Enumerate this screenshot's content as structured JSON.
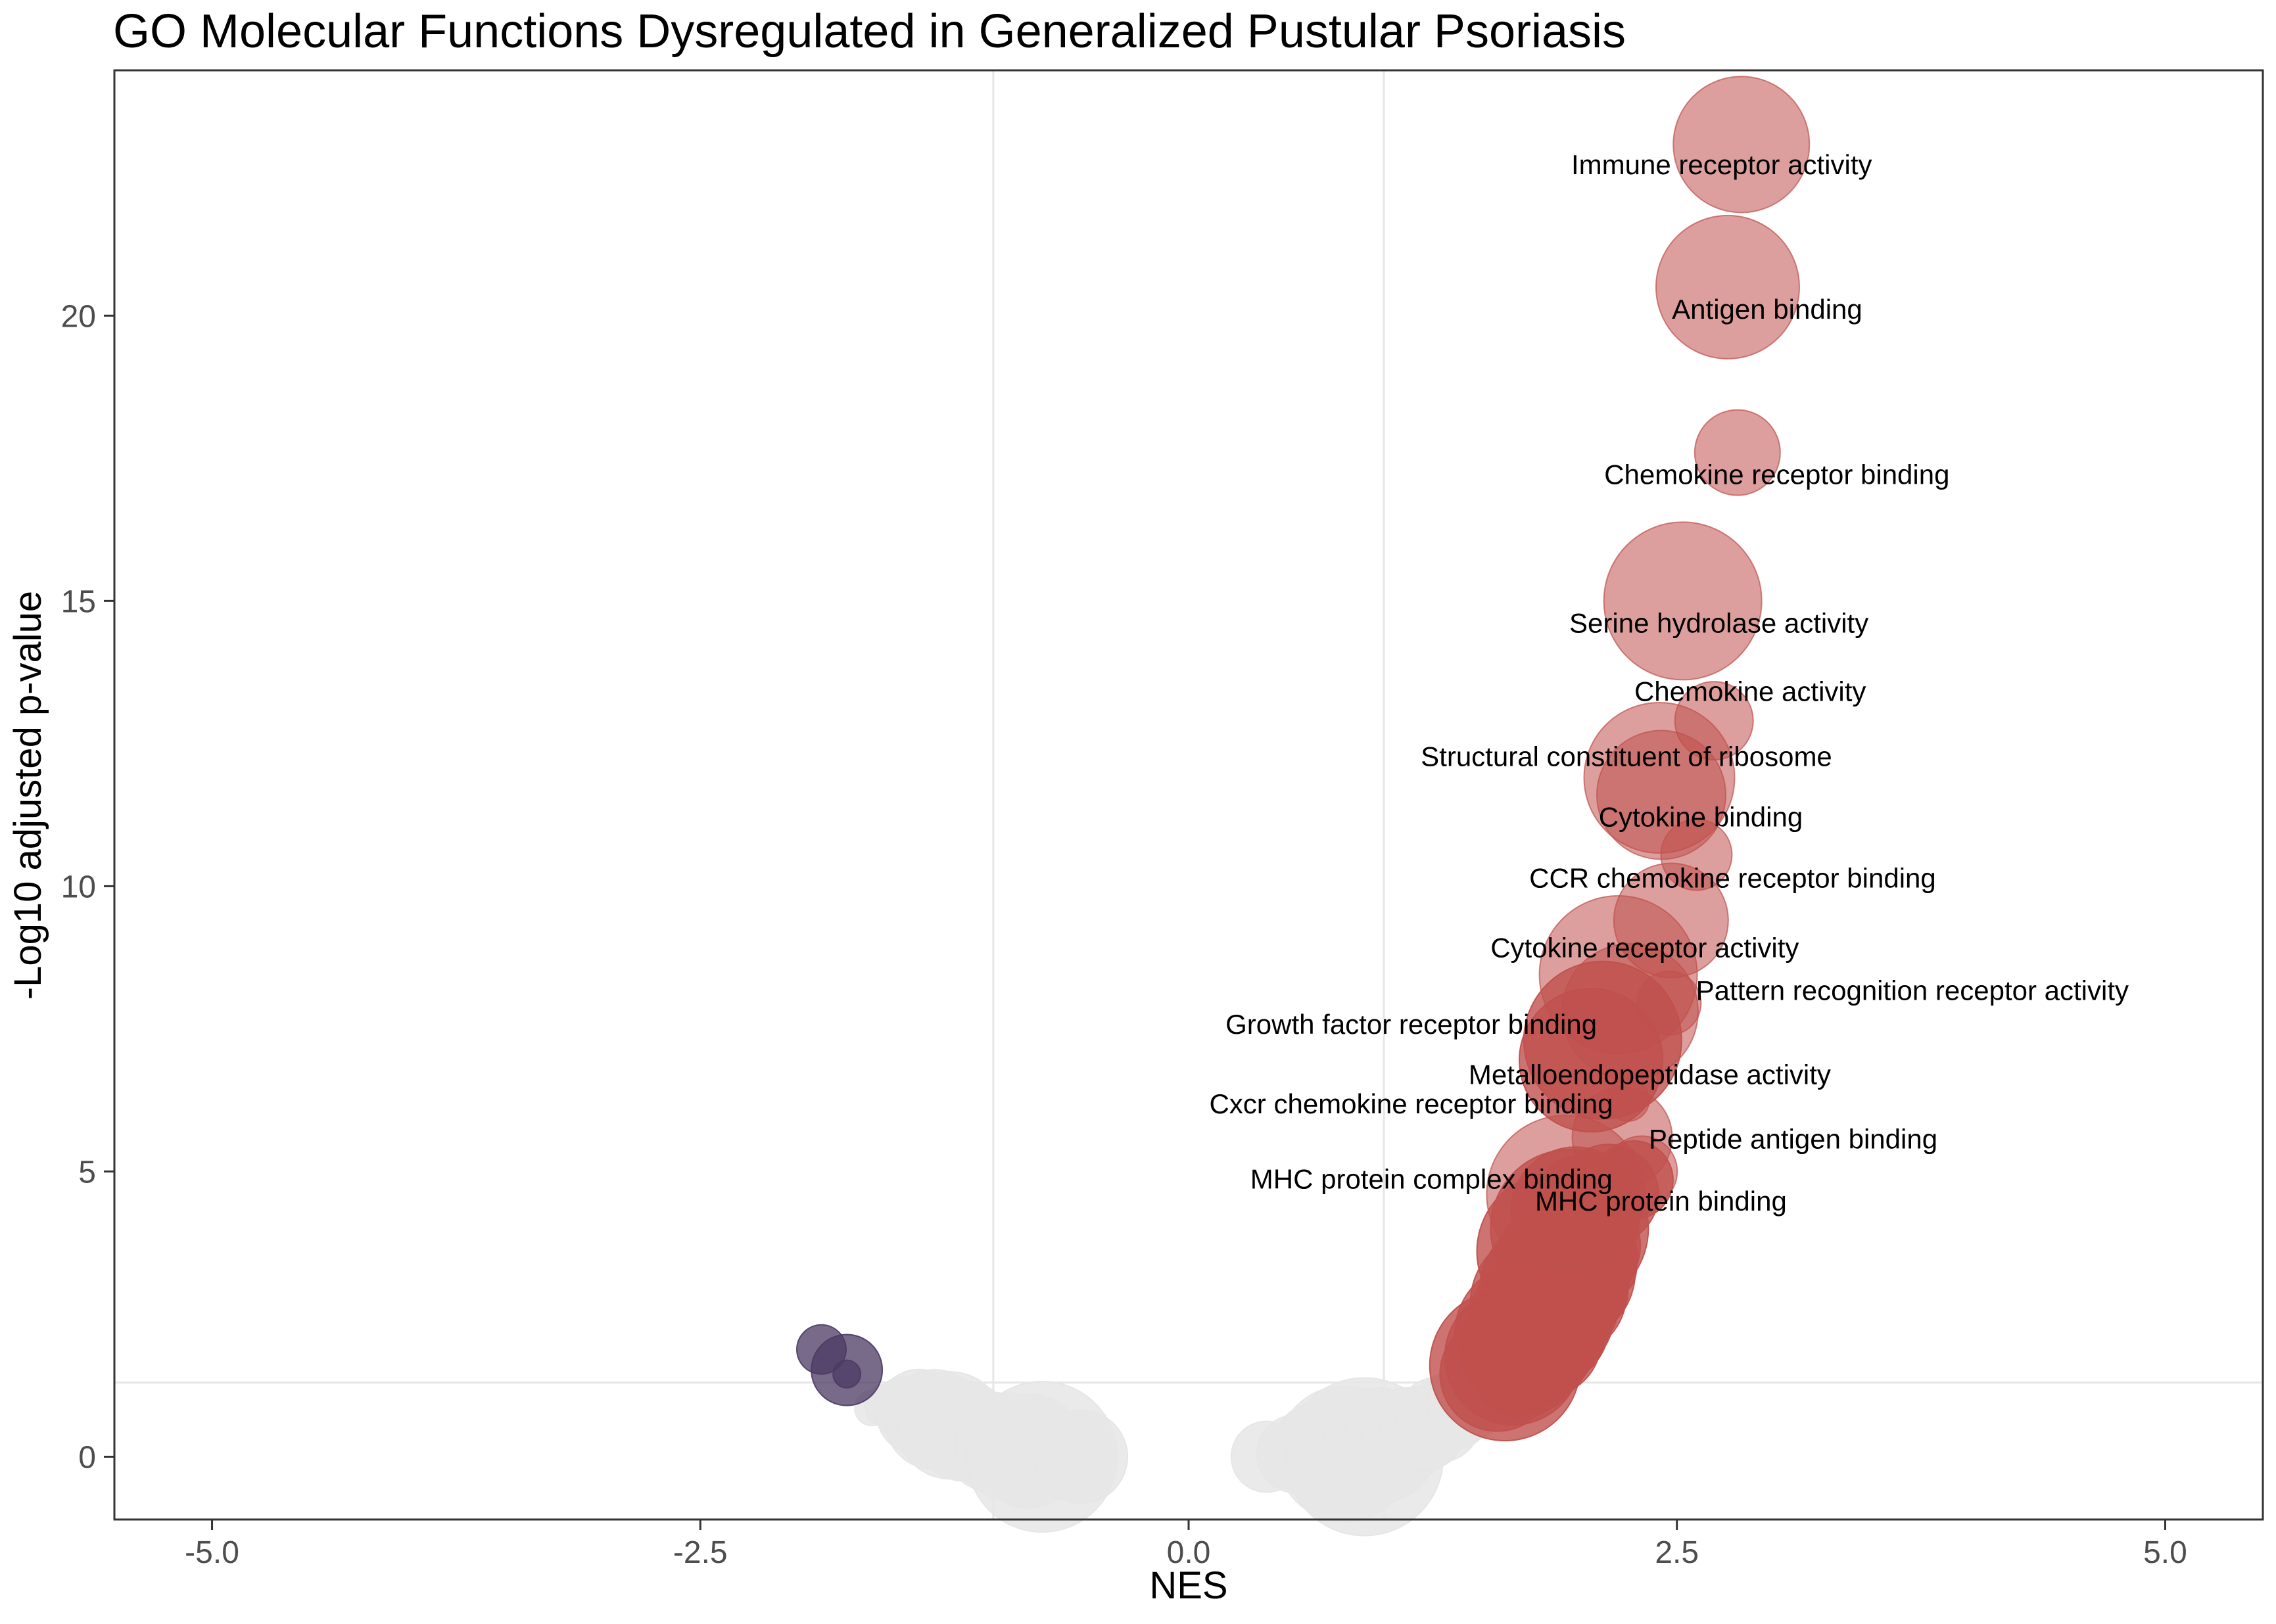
{
  "chart_data": {
    "type": "scatter",
    "title": "GO Molecular Functions Dysregulated in Generalized Pustular Psoriasis",
    "xlabel": "NES",
    "ylabel": "-Log10 adjusted p-value",
    "xlim": [
      -5.5,
      5.5
    ],
    "ylim": [
      -1.1,
      24.3
    ],
    "x_ticks": [
      -5,
      -2.5,
      0,
      2.5,
      5
    ],
    "x_tick_labels": [
      "-5.0",
      "-2.5",
      "0.0",
      "2.5",
      "5.0"
    ],
    "y_ticks": [
      0,
      5,
      10,
      15,
      20
    ],
    "y_tick_labels": [
      "0",
      "5",
      "10",
      "15",
      "20"
    ],
    "reference_lines": {
      "vertical": [
        -1,
        1
      ],
      "horizontal": [
        1.3
      ]
    },
    "grid": false,
    "legend": "none",
    "colors": {
      "up": "#c0504d",
      "down": "#4b3a63",
      "ns": "#e6e6e6",
      "panel_border": "#333333",
      "reference_line": "#e6e6e6"
    },
    "labeled_points": [
      {
        "label": "Immune receptor activity",
        "x": 2.83,
        "y": 23.0,
        "size": 0.85
      },
      {
        "label": "Antigen binding",
        "x": 2.76,
        "y": 20.5,
        "size": 0.9
      },
      {
        "label": "Chemokine receptor binding",
        "x": 2.81,
        "y": 17.6,
        "size": 0.5
      },
      {
        "label": "Serine hydrolase activity",
        "x": 2.53,
        "y": 15.0,
        "size": 1.0
      },
      {
        "label": "Chemokine activity",
        "x": 2.69,
        "y": 12.9,
        "size": 0.45
      },
      {
        "label": "Structural constituent of ribosome",
        "x": 2.41,
        "y": 11.9,
        "size": 0.95
      },
      {
        "label": "Cytokine binding",
        "x": 2.42,
        "y": 11.6,
        "size": 0.8
      },
      {
        "label": "CCR chemokine receptor binding",
        "x": 2.6,
        "y": 10.55,
        "size": 0.4
      },
      {
        "label": "Cytokine receptor activity",
        "x": 2.47,
        "y": 9.4,
        "size": 0.7
      },
      {
        "label": "Pattern recognition receptor activity",
        "x": 2.46,
        "y": 7.95,
        "size": 0.35
      },
      {
        "label": "Growth factor receptor binding",
        "x": 2.2,
        "y": 8.45,
        "size": 1.0
      },
      {
        "label": "Metalloendopeptidase activity",
        "x": 2.26,
        "y": 7.8,
        "size": 0.85
      },
      {
        "label": "Cxcr chemokine receptor binding",
        "x": 2.25,
        "y": 6.25,
        "size": 0.2
      },
      {
        "label": "Peptide antigen binding",
        "x": 2.22,
        "y": 5.6,
        "size": 0.6
      },
      {
        "label": "MHC protein complex binding",
        "x": 2.32,
        "y": 5.0,
        "size": 0.4
      },
      {
        "label": "MHC protein binding",
        "x": 1.93,
        "y": 4.6,
        "size": 1.0
      }
    ],
    "other_points": {
      "up": [
        {
          "x": 2.12,
          "y": 7.3,
          "size": 1.0
        },
        {
          "x": 2.06,
          "y": 6.95,
          "size": 0.9
        },
        {
          "x": 1.98,
          "y": 4.3,
          "size": 0.8
        },
        {
          "x": 2.28,
          "y": 4.85,
          "size": 0.45
        },
        {
          "x": 2.15,
          "y": 4.6,
          "size": 0.6
        },
        {
          "x": 1.95,
          "y": 4.0,
          "size": 1.0
        },
        {
          "x": 2.05,
          "y": 4.1,
          "size": 0.6
        },
        {
          "x": 1.88,
          "y": 3.6,
          "size": 1.0
        },
        {
          "x": 2.02,
          "y": 3.7,
          "size": 0.7
        },
        {
          "x": 2.1,
          "y": 3.5,
          "size": 0.45
        },
        {
          "x": 1.96,
          "y": 3.4,
          "size": 0.55
        },
        {
          "x": 1.92,
          "y": 3.25,
          "size": 0.9
        },
        {
          "x": 2.0,
          "y": 3.1,
          "size": 0.6
        },
        {
          "x": 2.13,
          "y": 3.3,
          "size": 0.35
        },
        {
          "x": 1.84,
          "y": 2.95,
          "size": 0.85
        },
        {
          "x": 1.93,
          "y": 2.85,
          "size": 0.75
        },
        {
          "x": 2.05,
          "y": 2.9,
          "size": 0.45
        },
        {
          "x": 1.81,
          "y": 2.7,
          "size": 0.9
        },
        {
          "x": 1.89,
          "y": 2.55,
          "size": 0.65
        },
        {
          "x": 1.98,
          "y": 2.6,
          "size": 0.5
        },
        {
          "x": 2.08,
          "y": 2.75,
          "size": 0.3
        },
        {
          "x": 1.77,
          "y": 2.4,
          "size": 0.8
        },
        {
          "x": 1.86,
          "y": 2.3,
          "size": 0.7
        },
        {
          "x": 1.95,
          "y": 2.35,
          "size": 0.5
        },
        {
          "x": 1.73,
          "y": 2.15,
          "size": 0.9
        },
        {
          "x": 1.82,
          "y": 2.05,
          "size": 0.7
        },
        {
          "x": 1.91,
          "y": 2.1,
          "size": 0.5
        },
        {
          "x": 1.7,
          "y": 1.95,
          "size": 0.75
        },
        {
          "x": 1.79,
          "y": 1.85,
          "size": 0.6
        },
        {
          "x": 1.88,
          "y": 1.9,
          "size": 0.45
        },
        {
          "x": 1.66,
          "y": 1.75,
          "size": 0.85
        },
        {
          "x": 1.75,
          "y": 1.65,
          "size": 0.6
        },
        {
          "x": 1.84,
          "y": 1.7,
          "size": 0.45
        },
        {
          "x": 1.62,
          "y": 1.6,
          "size": 0.95
        },
        {
          "x": 1.71,
          "y": 1.5,
          "size": 0.55
        },
        {
          "x": 1.8,
          "y": 1.55,
          "size": 0.4
        },
        {
          "x": 1.58,
          "y": 1.45,
          "size": 0.7
        },
        {
          "x": 1.67,
          "y": 1.4,
          "size": 0.45
        },
        {
          "x": 1.76,
          "y": 1.42,
          "size": 0.35
        },
        {
          "x": 1.9,
          "y": 2.8,
          "size": 0.6
        },
        {
          "x": 2.01,
          "y": 3.8,
          "size": 0.4
        },
        {
          "x": 1.97,
          "y": 4.7,
          "size": 0.35
        }
      ],
      "down": [
        {
          "x": -1.88,
          "y": 1.88,
          "size": 0.25
        },
        {
          "x": -1.75,
          "y": 1.52,
          "size": 0.4
        },
        {
          "x": -1.75,
          "y": 1.45,
          "size": 0.1
        }
      ],
      "ns": [
        {
          "x": -1.62,
          "y": 0.85,
          "size": 0.15
        },
        {
          "x": -1.55,
          "y": 0.9,
          "size": 0.2
        },
        {
          "x": -1.45,
          "y": 0.85,
          "size": 0.35
        },
        {
          "x": -1.38,
          "y": 0.78,
          "size": 0.5
        },
        {
          "x": -1.3,
          "y": 0.65,
          "size": 0.6
        },
        {
          "x": -1.22,
          "y": 0.55,
          "size": 0.65
        },
        {
          "x": -1.15,
          "y": 0.45,
          "size": 0.6
        },
        {
          "x": -1.08,
          "y": 0.35,
          "size": 0.55
        },
        {
          "x": -1.0,
          "y": 0.25,
          "size": 0.6
        },
        {
          "x": -0.92,
          "y": 0.18,
          "size": 0.65
        },
        {
          "x": -0.82,
          "y": 0.1,
          "size": 0.7
        },
        {
          "x": -0.75,
          "y": 0.0,
          "size": 0.95
        },
        {
          "x": -0.55,
          "y": 0.0,
          "size": 0.55
        },
        {
          "x": 0.4,
          "y": 0.0,
          "size": 0.4
        },
        {
          "x": 0.55,
          "y": 0.05,
          "size": 0.45
        },
        {
          "x": 0.68,
          "y": 0.1,
          "size": 0.6
        },
        {
          "x": 0.8,
          "y": 0.05,
          "size": 0.85
        },
        {
          "x": 0.9,
          "y": 0.0,
          "size": 1.0
        },
        {
          "x": 0.98,
          "y": 0.2,
          "size": 0.7
        },
        {
          "x": 1.05,
          "y": 0.3,
          "size": 0.6
        },
        {
          "x": 1.12,
          "y": 0.4,
          "size": 0.55
        },
        {
          "x": 1.2,
          "y": 0.5,
          "size": 0.5
        },
        {
          "x": 1.28,
          "y": 0.65,
          "size": 0.5
        },
        {
          "x": 1.35,
          "y": 0.8,
          "size": 0.45
        },
        {
          "x": 1.42,
          "y": 0.95,
          "size": 0.45
        },
        {
          "x": 1.48,
          "y": 1.1,
          "size": 0.4
        },
        {
          "x": 1.55,
          "y": 1.22,
          "size": 0.35
        }
      ]
    }
  }
}
